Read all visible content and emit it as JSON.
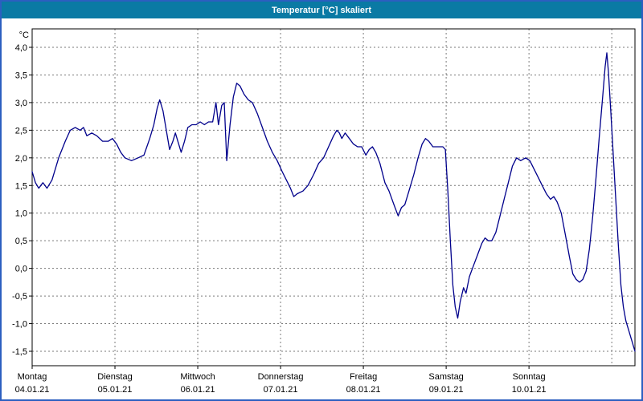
{
  "window": {
    "title": "Temperatur [°C] skaliert",
    "titlebar_color": "#0a7aa4",
    "border_color": "#2c5fc0"
  },
  "chart_data": {
    "type": "line",
    "title": "Temperatur [°C] skaliert",
    "legend": "none",
    "grid": {
      "visible": true,
      "style": "dashed",
      "color": "#7a7a7a"
    },
    "plot_background": "#ffffff",
    "y_axis": {
      "label": "°C",
      "ylim": [
        -1.5,
        4.0
      ],
      "tick_values": [
        4.0,
        3.5,
        3.0,
        2.5,
        2.0,
        1.5,
        1.0,
        0.5,
        0.0,
        -0.5,
        -1.0,
        -1.5
      ],
      "tick_labels": [
        "4,0",
        "3,5",
        "3,0",
        "2,5",
        "2,0",
        "1,5",
        "1,0",
        "0,5",
        "0,0",
        "-0,5",
        "-1,0",
        "-1,5"
      ]
    },
    "x_axis": {
      "unit": "days",
      "xlim_days": [
        0,
        7.28
      ],
      "gridline_days": [
        1,
        2,
        3,
        4,
        5,
        6,
        7
      ],
      "days": [
        {
          "weekday": "Montag",
          "date": "04.01.21"
        },
        {
          "weekday": "Dienstag",
          "date": "05.01.21"
        },
        {
          "weekday": "Mittwoch",
          "date": "06.01.21"
        },
        {
          "weekday": "Donnerstag",
          "date": "07.01.21"
        },
        {
          "weekday": "Freitag",
          "date": "08.01.21"
        },
        {
          "weekday": "Samstag",
          "date": "09.01.21"
        },
        {
          "weekday": "Sonntag",
          "date": "10.01.21"
        }
      ]
    },
    "series": [
      {
        "name": "Temperatur",
        "color": "#00008b",
        "points": [
          [
            0.0,
            1.75
          ],
          [
            0.04,
            1.55
          ],
          [
            0.08,
            1.45
          ],
          [
            0.13,
            1.55
          ],
          [
            0.18,
            1.45
          ],
          [
            0.24,
            1.6
          ],
          [
            0.32,
            2.0
          ],
          [
            0.4,
            2.3
          ],
          [
            0.46,
            2.5
          ],
          [
            0.52,
            2.55
          ],
          [
            0.58,
            2.5
          ],
          [
            0.62,
            2.55
          ],
          [
            0.66,
            2.4
          ],
          [
            0.72,
            2.45
          ],
          [
            0.78,
            2.4
          ],
          [
            0.85,
            2.3
          ],
          [
            0.92,
            2.3
          ],
          [
            0.97,
            2.35
          ],
          [
            1.02,
            2.25
          ],
          [
            1.07,
            2.1
          ],
          [
            1.12,
            2.0
          ],
          [
            1.2,
            1.95
          ],
          [
            1.28,
            2.0
          ],
          [
            1.35,
            2.05
          ],
          [
            1.42,
            2.35
          ],
          [
            1.47,
            2.6
          ],
          [
            1.51,
            2.9
          ],
          [
            1.54,
            3.05
          ],
          [
            1.58,
            2.85
          ],
          [
            1.62,
            2.5
          ],
          [
            1.66,
            2.15
          ],
          [
            1.7,
            2.3
          ],
          [
            1.73,
            2.45
          ],
          [
            1.77,
            2.25
          ],
          [
            1.8,
            2.1
          ],
          [
            1.84,
            2.3
          ],
          [
            1.88,
            2.55
          ],
          [
            1.93,
            2.6
          ],
          [
            1.98,
            2.6
          ],
          [
            2.03,
            2.65
          ],
          [
            2.08,
            2.6
          ],
          [
            2.13,
            2.65
          ],
          [
            2.18,
            2.65
          ],
          [
            2.22,
            3.0
          ],
          [
            2.25,
            2.6
          ],
          [
            2.29,
            2.95
          ],
          [
            2.32,
            3.0
          ],
          [
            2.35,
            1.95
          ],
          [
            2.39,
            2.6
          ],
          [
            2.43,
            3.1
          ],
          [
            2.47,
            3.35
          ],
          [
            2.51,
            3.3
          ],
          [
            2.56,
            3.15
          ],
          [
            2.61,
            3.05
          ],
          [
            2.66,
            3.0
          ],
          [
            2.72,
            2.8
          ],
          [
            2.78,
            2.55
          ],
          [
            2.84,
            2.3
          ],
          [
            2.9,
            2.1
          ],
          [
            2.96,
            1.95
          ],
          [
            3.02,
            1.75
          ],
          [
            3.07,
            1.6
          ],
          [
            3.12,
            1.45
          ],
          [
            3.16,
            1.3
          ],
          [
            3.2,
            1.35
          ],
          [
            3.27,
            1.4
          ],
          [
            3.33,
            1.5
          ],
          [
            3.4,
            1.7
          ],
          [
            3.46,
            1.9
          ],
          [
            3.52,
            2.0
          ],
          [
            3.58,
            2.2
          ],
          [
            3.64,
            2.4
          ],
          [
            3.68,
            2.5
          ],
          [
            3.71,
            2.45
          ],
          [
            3.74,
            2.35
          ],
          [
            3.78,
            2.45
          ],
          [
            3.83,
            2.35
          ],
          [
            3.88,
            2.25
          ],
          [
            3.93,
            2.2
          ],
          [
            3.98,
            2.2
          ],
          [
            4.03,
            2.05
          ],
          [
            4.07,
            2.15
          ],
          [
            4.11,
            2.2
          ],
          [
            4.15,
            2.1
          ],
          [
            4.2,
            1.9
          ],
          [
            4.26,
            1.55
          ],
          [
            4.31,
            1.4
          ],
          [
            4.37,
            1.15
          ],
          [
            4.42,
            0.95
          ],
          [
            4.46,
            1.1
          ],
          [
            4.5,
            1.15
          ],
          [
            4.55,
            1.4
          ],
          [
            4.61,
            1.7
          ],
          [
            4.66,
            2.0
          ],
          [
            4.71,
            2.25
          ],
          [
            4.75,
            2.35
          ],
          [
            4.79,
            2.3
          ],
          [
            4.84,
            2.2
          ],
          [
            4.9,
            2.2
          ],
          [
            4.96,
            2.2
          ],
          [
            4.99,
            2.15
          ],
          [
            5.02,
            1.4
          ],
          [
            5.05,
            0.5
          ],
          [
            5.08,
            -0.3
          ],
          [
            5.11,
            -0.7
          ],
          [
            5.14,
            -0.9
          ],
          [
            5.17,
            -0.6
          ],
          [
            5.21,
            -0.35
          ],
          [
            5.24,
            -0.45
          ],
          [
            5.28,
            -0.15
          ],
          [
            5.33,
            0.05
          ],
          [
            5.38,
            0.25
          ],
          [
            5.43,
            0.45
          ],
          [
            5.47,
            0.55
          ],
          [
            5.51,
            0.5
          ],
          [
            5.55,
            0.5
          ],
          [
            5.6,
            0.65
          ],
          [
            5.65,
            0.95
          ],
          [
            5.7,
            1.25
          ],
          [
            5.75,
            1.55
          ],
          [
            5.8,
            1.85
          ],
          [
            5.85,
            2.0
          ],
          [
            5.9,
            1.95
          ],
          [
            5.96,
            2.0
          ],
          [
            6.01,
            1.95
          ],
          [
            6.06,
            1.8
          ],
          [
            6.11,
            1.65
          ],
          [
            6.16,
            1.5
          ],
          [
            6.21,
            1.35
          ],
          [
            6.26,
            1.25
          ],
          [
            6.3,
            1.3
          ],
          [
            6.34,
            1.2
          ],
          [
            6.39,
            1.0
          ],
          [
            6.44,
            0.6
          ],
          [
            6.49,
            0.2
          ],
          [
            6.53,
            -0.1
          ],
          [
            6.57,
            -0.2
          ],
          [
            6.61,
            -0.25
          ],
          [
            6.65,
            -0.2
          ],
          [
            6.69,
            -0.05
          ],
          [
            6.73,
            0.35
          ],
          [
            6.77,
            0.95
          ],
          [
            6.81,
            1.65
          ],
          [
            6.85,
            2.4
          ],
          [
            6.89,
            3.1
          ],
          [
            6.92,
            3.65
          ],
          [
            6.94,
            3.9
          ],
          [
            6.96,
            3.55
          ],
          [
            6.99,
            2.8
          ],
          [
            7.02,
            2.0
          ],
          [
            7.05,
            1.2
          ],
          [
            7.08,
            0.4
          ],
          [
            7.11,
            -0.3
          ],
          [
            7.14,
            -0.7
          ],
          [
            7.17,
            -0.95
          ],
          [
            7.2,
            -1.1
          ],
          [
            7.24,
            -1.3
          ],
          [
            7.28,
            -1.5
          ]
        ]
      }
    ]
  }
}
